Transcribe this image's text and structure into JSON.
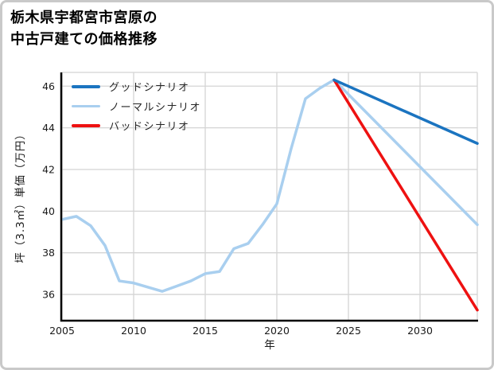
{
  "chart_data": {
    "type": "line",
    "title": "栃木県宇都宮市宮原の中古戸建ての価格推移",
    "title_lines": [
      "栃木県宇都宮市宮原の",
      "中古戸建ての価格推移"
    ],
    "xlabel": "年",
    "ylabel": "坪（3.3㎡）単価（万円）",
    "xlim": [
      2005,
      2034
    ],
    "ylim": [
      34.78,
      46.66
    ],
    "xticks": [
      2005,
      2010,
      2015,
      2020,
      2025,
      2030
    ],
    "yticks": [
      36,
      38,
      40,
      42,
      44,
      46
    ],
    "grid": true,
    "legend_position": "upper-left",
    "line_width": 3.5,
    "colors": {
      "grid": "#d4d4d4",
      "axis": "#000000",
      "tick_text": "#1a1a1a",
      "card_border": "#c9c9c9",
      "background": "#ffffff"
    },
    "series": [
      {
        "name": "グッドシナリオ",
        "color": "#1b74c0",
        "x": [
          2024,
          2034
        ],
        "y": [
          46.3,
          43.25
        ]
      },
      {
        "name": "ノーマルシナリオ",
        "color": "#a9cfef",
        "x": [
          2005,
          2006,
          2007,
          2008,
          2009,
          2010,
          2011,
          2012,
          2013,
          2014,
          2015,
          2016,
          2017,
          2018,
          2019,
          2020,
          2021,
          2022,
          2023,
          2024,
          2034
        ],
        "y": [
          39.6,
          39.75,
          39.3,
          38.35,
          36.65,
          36.55,
          36.35,
          36.15,
          36.4,
          36.65,
          37.0,
          37.1,
          38.2,
          38.45,
          39.35,
          40.35,
          43.0,
          45.4,
          45.9,
          46.3,
          39.35
        ]
      },
      {
        "name": "バッドシナリオ",
        "color": "#ee1111",
        "x": [
          2024,
          2034
        ],
        "y": [
          46.3,
          35.25
        ]
      }
    ],
    "draw_order": [
      1,
      2,
      0
    ]
  }
}
